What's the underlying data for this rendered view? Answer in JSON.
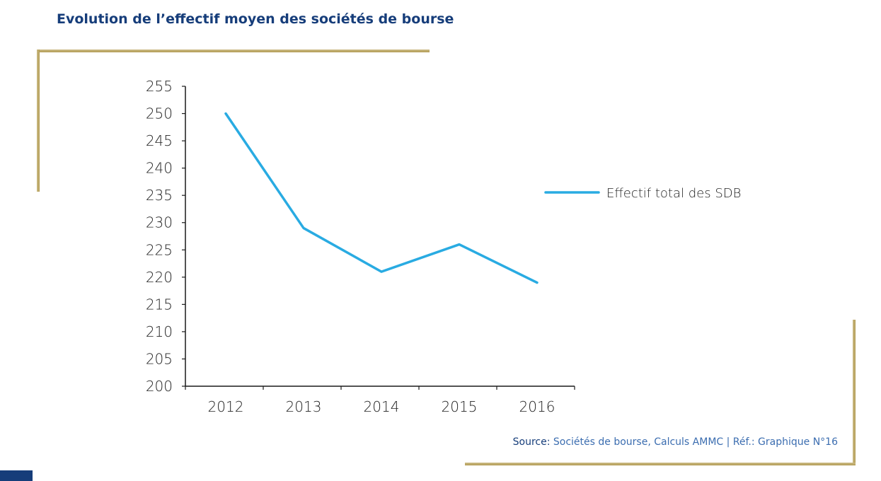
{
  "title": "Evolution de l’effectif moyen des sociétés de bourse",
  "source": {
    "label": "Source:",
    "text": "Sociétés de bourse, Calculs AMMC | Réf.: Graphique N°16"
  },
  "colors": {
    "title": "#163d7a",
    "line": "#29abe2",
    "frame": "#c2b27a",
    "axis": "#1a1a1a",
    "source_text": "#3b6db0"
  },
  "chart_data": {
    "type": "line",
    "categories": [
      "2012",
      "2013",
      "2014",
      "2015",
      "2016"
    ],
    "series": [
      {
        "name": "Effectif total des SDB",
        "values": [
          250,
          229,
          221,
          226,
          219
        ]
      }
    ],
    "yticks": [
      "200",
      "205",
      "210",
      "215",
      "220",
      "225",
      "230",
      "235",
      "240",
      "245",
      "250",
      "255"
    ],
    "ylim": [
      200,
      255
    ],
    "xlabel": "",
    "ylabel": "",
    "legend": "right",
    "grid": false
  }
}
